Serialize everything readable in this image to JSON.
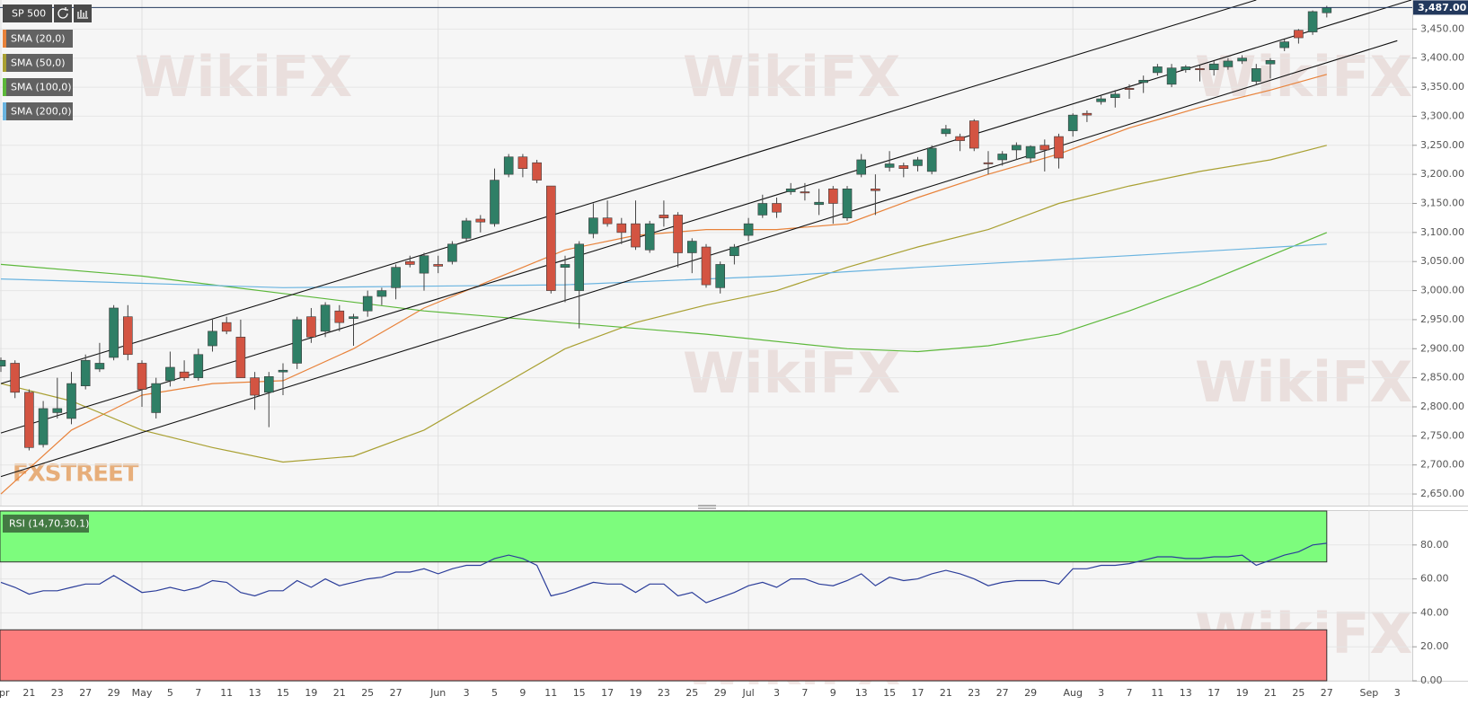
{
  "watermark": "WikiFX",
  "logo": "FXSTREET",
  "chart_data": [
    {
      "type": "candlestick",
      "series": [
        {
          "name": "SP 500",
          "up_color": "#2f7f66",
          "down_color": "#d35442",
          "open": [
            2870,
            2875,
            2825,
            2735,
            2790,
            2780,
            2836,
            2865,
            2885,
            2955,
            2875,
            2790,
            2845,
            2860,
            2850,
            2905,
            2945,
            2920,
            2850,
            2825,
            2860,
            2875,
            2955,
            2930,
            2965,
            2952,
            2965,
            2990,
            3005,
            3050,
            3030,
            3045,
            3050,
            3090,
            3123,
            3115,
            3200,
            3230,
            3220,
            3180,
            3040,
            3000,
            3098,
            3125,
            3115,
            3115,
            3070,
            3130,
            3130,
            3065,
            3075,
            3005,
            3060,
            3095,
            3130,
            3150,
            3170,
            3170,
            3148,
            3175,
            3125,
            3200,
            3175,
            3212,
            3215,
            3215,
            3205,
            3270,
            3265,
            3292,
            3220,
            3225,
            3242,
            3228,
            3250,
            3265,
            3275,
            3305,
            3325,
            3332,
            3348,
            3358,
            3375,
            3355,
            3380,
            3382,
            3380,
            3385,
            3395,
            3360,
            3390,
            3418,
            3448,
            3445,
            3478
          ],
          "high": [
            2885,
            2880,
            2830,
            2810,
            2850,
            2860,
            2890,
            2910,
            2975,
            2975,
            2880,
            2850,
            2895,
            2880,
            2900,
            2950,
            2955,
            2950,
            2860,
            2860,
            2875,
            2955,
            2970,
            2980,
            2975,
            2960,
            3000,
            3005,
            3045,
            3060,
            3065,
            3060,
            3085,
            3125,
            3130,
            3210,
            3235,
            3235,
            3225,
            3180,
            3060,
            3085,
            3150,
            3155,
            3125,
            3155,
            3120,
            3155,
            3135,
            3090,
            3080,
            3050,
            3080,
            3125,
            3165,
            3160,
            3185,
            3185,
            3175,
            3180,
            3180,
            3235,
            3200,
            3240,
            3220,
            3230,
            3250,
            3285,
            3270,
            3295,
            3240,
            3240,
            3255,
            3250,
            3260,
            3270,
            3305,
            3310,
            3335,
            3345,
            3355,
            3370,
            3390,
            3390,
            3388,
            3388,
            3395,
            3400,
            3405,
            3390,
            3400,
            3432,
            3450,
            3482,
            3490
          ],
          "low": [
            2860,
            2815,
            2725,
            2730,
            2780,
            2770,
            2830,
            2860,
            2880,
            2880,
            2800,
            2780,
            2835,
            2845,
            2845,
            2895,
            2925,
            2850,
            2795,
            2765,
            2820,
            2865,
            2910,
            2920,
            2930,
            2905,
            2955,
            2975,
            2985,
            3040,
            3000,
            3030,
            3045,
            3085,
            3100,
            3110,
            3195,
            3195,
            3185,
            2995,
            2980,
            2935,
            3090,
            3110,
            3080,
            3070,
            3065,
            3110,
            3040,
            3030,
            3005,
            2995,
            3045,
            3085,
            3125,
            3125,
            3165,
            3155,
            3130,
            3115,
            3120,
            3195,
            3130,
            3205,
            3195,
            3205,
            3200,
            3265,
            3240,
            3240,
            3200,
            3215,
            3225,
            3220,
            3205,
            3210,
            3265,
            3290,
            3320,
            3315,
            3330,
            3340,
            3370,
            3350,
            3375,
            3360,
            3370,
            3380,
            3390,
            3355,
            3365,
            3412,
            3425,
            3440,
            3470
          ],
          "close": [
            2880,
            2825,
            2730,
            2797,
            2797,
            2840,
            2880,
            2875,
            2970,
            2890,
            2830,
            2840,
            2868,
            2850,
            2890,
            2930,
            2930,
            2850,
            2820,
            2852,
            2863,
            2950,
            2920,
            2975,
            2945,
            2955,
            2990,
            3000,
            3040,
            3045,
            3060,
            3042,
            3080,
            3120,
            3118,
            3190,
            3230,
            3210,
            3190,
            3000,
            3045,
            3080,
            3125,
            3115,
            3100,
            3075,
            3115,
            3125,
            3065,
            3085,
            3010,
            3045,
            3075,
            3115,
            3150,
            3135,
            3175,
            3168,
            3152,
            3150,
            3175,
            3225,
            3172,
            3218,
            3210,
            3225,
            3245,
            3278,
            3258,
            3245,
            3218,
            3235,
            3250,
            3248,
            3242,
            3228,
            3302,
            3302,
            3330,
            3338,
            3346,
            3362,
            3385,
            3383,
            3385,
            3380,
            3390,
            3395,
            3400,
            3382,
            3396,
            3428,
            3435,
            3480,
            3487
          ]
        }
      ],
      "overlays": [
        {
          "name": "SMA (20,0)",
          "color": "#e8823a",
          "x": [
            0,
            5,
            10,
            15,
            20,
            25,
            30,
            35,
            40,
            45,
            50,
            55,
            60,
            65,
            70,
            75,
            80,
            85,
            90,
            94
          ],
          "values": [
            2650,
            2760,
            2820,
            2840,
            2845,
            2900,
            2970,
            3020,
            3070,
            3095,
            3105,
            3105,
            3115,
            3160,
            3200,
            3235,
            3280,
            3315,
            3345,
            3372
          ]
        },
        {
          "name": "SMA (50,0)",
          "color": "#a9a032",
          "x": [
            0,
            5,
            10,
            15,
            20,
            25,
            30,
            35,
            40,
            45,
            50,
            55,
            60,
            65,
            70,
            75,
            80,
            85,
            90,
            94
          ],
          "values": [
            2840,
            2810,
            2760,
            2730,
            2705,
            2715,
            2760,
            2830,
            2900,
            2945,
            2975,
            3000,
            3040,
            3075,
            3105,
            3150,
            3180,
            3205,
            3225,
            3250
          ]
        },
        {
          "name": "SMA (100,0)",
          "color": "#5cb83a",
          "x": [
            0,
            10,
            20,
            30,
            40,
            50,
            60,
            65,
            70,
            75,
            80,
            85,
            90,
            94
          ],
          "values": [
            3045,
            3025,
            2995,
            2965,
            2945,
            2925,
            2900,
            2895,
            2905,
            2925,
            2965,
            3010,
            3060,
            3100
          ]
        },
        {
          "name": "SMA (200,0)",
          "color": "#6ab4e0",
          "x": [
            0,
            20,
            40,
            55,
            65,
            80,
            94
          ],
          "values": [
            3020,
            3005,
            3010,
            3025,
            3040,
            3060,
            3080
          ]
        }
      ],
      "trendlines": [
        {
          "color": "#111111",
          "x": [
            0,
            89
          ],
          "values": [
            2840,
            3500
          ]
        },
        {
          "color": "#111111",
          "x": [
            0,
            100
          ],
          "values": [
            2755,
            3500
          ]
        },
        {
          "color": "#111111",
          "x": [
            0,
            99
          ],
          "values": [
            2680,
            3430
          ]
        }
      ],
      "last_price": {
        "value": 3487,
        "label": "3,487.00"
      },
      "ylim": [
        2630,
        3500
      ],
      "yticks": [
        {
          "value": 2650,
          "label": "2,650.00"
        },
        {
          "value": 2700,
          "label": "2,700.00"
        },
        {
          "value": 2750,
          "label": "2,750.00"
        },
        {
          "value": 2800,
          "label": "2,800.00"
        },
        {
          "value": 2850,
          "label": "2,850.00"
        },
        {
          "value": 2900,
          "label": "2,900.00"
        },
        {
          "value": 2950,
          "label": "2,950.00"
        },
        {
          "value": 3000,
          "label": "3,000.00"
        },
        {
          "value": 3050,
          "label": "3,050.00"
        },
        {
          "value": 3100,
          "label": "3,100.00"
        },
        {
          "value": 3150,
          "label": "3,150.00"
        },
        {
          "value": 3200,
          "label": "3,200.00"
        },
        {
          "value": 3250,
          "label": "3,250.00"
        },
        {
          "value": 3300,
          "label": "3,300.00"
        },
        {
          "value": 3350,
          "label": "3,350.00"
        },
        {
          "value": 3400,
          "label": "3,400.00"
        },
        {
          "value": 3450,
          "label": "3,450.00"
        }
      ],
      "grid": true
    },
    {
      "type": "line",
      "name": "RSI (14,70,30,1)",
      "color": "#2c3e9a",
      "categories": [
        "Apr",
        null,
        "21",
        null,
        "23",
        null,
        "27",
        null,
        "29",
        null,
        "May",
        null,
        "5",
        null,
        "7",
        null,
        "11",
        null,
        "13",
        null,
        "15",
        null,
        "19",
        null,
        "21",
        null,
        "25",
        null,
        "27",
        null,
        null,
        "Jun",
        null,
        "3",
        null,
        "5",
        null,
        "9",
        null,
        "11",
        null,
        "15",
        null,
        "17",
        null,
        "19",
        null,
        "23",
        null,
        "25",
        null,
        "29",
        null,
        "Jul",
        null,
        "3",
        null,
        "7",
        null,
        "9",
        null,
        "13",
        null,
        "15",
        null,
        "17",
        null,
        "21",
        null,
        "23",
        null,
        "27",
        null,
        "29",
        null,
        null,
        "Aug",
        null,
        "3",
        null,
        "7",
        null,
        "11",
        null,
        "13",
        null,
        "17",
        null,
        "19",
        null,
        "21",
        null,
        "25",
        null,
        "27",
        null,
        null,
        "Sep",
        null,
        "3"
      ],
      "values": [
        58,
        55,
        51,
        53,
        53,
        55,
        57,
        57,
        62,
        57,
        52,
        53,
        55,
        53,
        55,
        59,
        58,
        52,
        50,
        53,
        53,
        59,
        55,
        60,
        56,
        58,
        60,
        61,
        64,
        64,
        66,
        63,
        66,
        68,
        68,
        72,
        74,
        72,
        68,
        50,
        52,
        55,
        58,
        57,
        57,
        52,
        57,
        57,
        50,
        52,
        46,
        49,
        52,
        56,
        58,
        55,
        60,
        60,
        57,
        56,
        59,
        63,
        56,
        61,
        59,
        60,
        63,
        65,
        63,
        60,
        56,
        58,
        59,
        59,
        59,
        57,
        66,
        66,
        68,
        68,
        69,
        71,
        73,
        73,
        72,
        72,
        73,
        73,
        74,
        68,
        71,
        74,
        76,
        80,
        81,
        null,
        null,
        null,
        null,
        null
      ],
      "zones": [
        {
          "from": 70,
          "to": 100,
          "color": "#7dfc7d"
        },
        {
          "from": 0,
          "to": 30,
          "color": "#fc7d7d"
        }
      ],
      "ylim": [
        0,
        100
      ],
      "yticks": [
        {
          "value": 0,
          "label": "0.00"
        },
        {
          "value": 20,
          "label": "20.00"
        },
        {
          "value": 40,
          "label": "40.00"
        },
        {
          "value": 60,
          "label": "60.00"
        },
        {
          "value": 80,
          "label": "80.00"
        }
      ],
      "grid": true
    }
  ]
}
